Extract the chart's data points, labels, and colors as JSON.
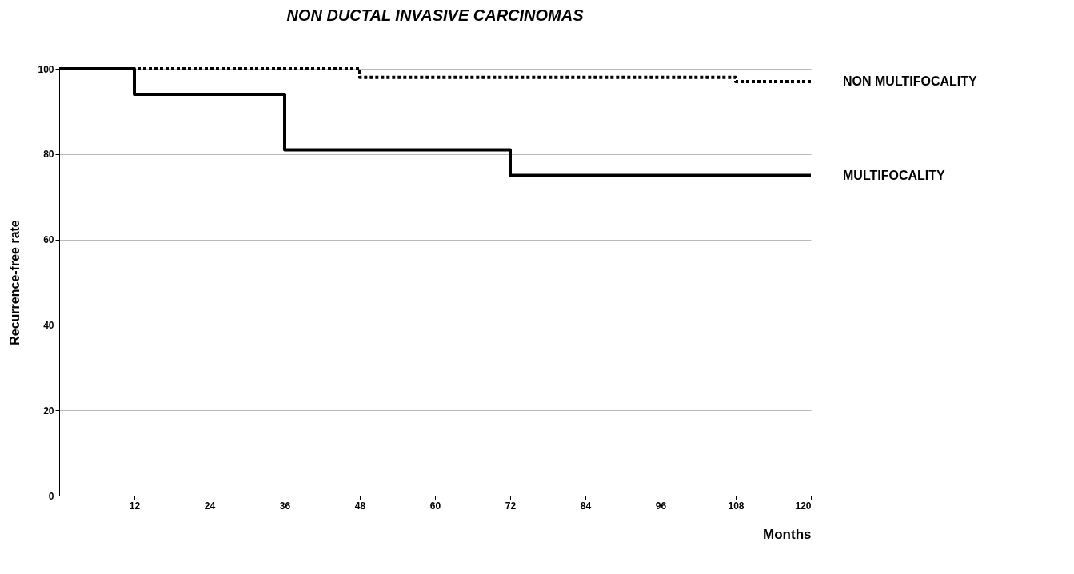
{
  "chart_data": {
    "type": "step",
    "title": "NON DUCTAL INVASIVE CARCINOMAS",
    "xlabel": "Months",
    "ylabel": "Recurrence-free rate",
    "xlim": [
      0,
      120
    ],
    "xticks": [
      12,
      24,
      36,
      48,
      60,
      72,
      84,
      96,
      108,
      120
    ],
    "ylim": [
      0,
      100
    ],
    "yticks": [
      0,
      20,
      40,
      60,
      80,
      100
    ],
    "grid": "y",
    "series": [
      {
        "name": "NON MULTIFOCALITY",
        "color": "#000000",
        "line_style": "dotted",
        "x": [
          0,
          48,
          108,
          120
        ],
        "values": [
          100,
          98,
          97,
          97
        ]
      },
      {
        "name": "MULTIFOCALITY",
        "color": "#000000",
        "line_style": "solid",
        "x": [
          0,
          12,
          36,
          72,
          120
        ],
        "values": [
          100,
          94,
          81,
          75,
          75
        ]
      }
    ]
  }
}
